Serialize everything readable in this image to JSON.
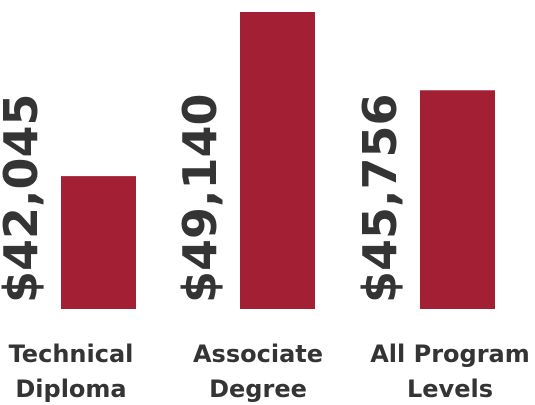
{
  "chart_data": {
    "type": "bar",
    "categories": [
      [
        "Technical",
        "Diploma"
      ],
      [
        "Associate",
        "Degree"
      ],
      [
        "All Program",
        "Levels"
      ]
    ],
    "values": [
      42045,
      49140,
      45756
    ],
    "data_labels": [
      "$42,045",
      "$49,140",
      "$45,756"
    ],
    "bar_color": "#a31f34",
    "text_color": "#343434",
    "ylim": [
      36300,
      49140
    ],
    "grid": false,
    "axes_visible": false,
    "legend": "none"
  }
}
